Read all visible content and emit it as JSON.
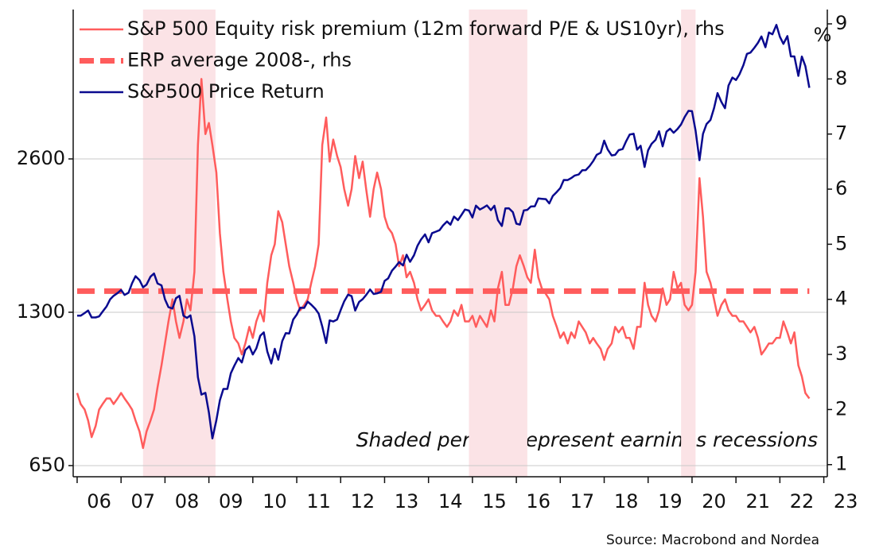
{
  "chart_data": {
    "type": "line",
    "annotation": "Shaded periods represent earnings recessions",
    "source": "Source: Macrobond and Nordea",
    "y2_unit": "%",
    "x": [
      2006.0,
      2006.08,
      2006.17,
      2006.25,
      2006.33,
      2006.42,
      2006.5,
      2006.58,
      2006.67,
      2006.75,
      2006.83,
      2006.92,
      2007.0,
      2007.08,
      2007.17,
      2007.25,
      2007.33,
      2007.42,
      2007.5,
      2007.58,
      2007.67,
      2007.75,
      2007.83,
      2007.92,
      2008.0,
      2008.08,
      2008.17,
      2008.25,
      2008.33,
      2008.42,
      2008.5,
      2008.58,
      2008.67,
      2008.75,
      2008.83,
      2008.92,
      2009.0,
      2009.08,
      2009.17,
      2009.25,
      2009.33,
      2009.42,
      2009.5,
      2009.58,
      2009.67,
      2009.75,
      2009.83,
      2009.92,
      2010.0,
      2010.08,
      2010.17,
      2010.25,
      2010.33,
      2010.42,
      2010.5,
      2010.58,
      2010.67,
      2010.75,
      2010.83,
      2010.92,
      2011.0,
      2011.08,
      2011.17,
      2011.25,
      2011.33,
      2011.42,
      2011.5,
      2011.58,
      2011.67,
      2011.75,
      2011.83,
      2011.92,
      2012.0,
      2012.08,
      2012.17,
      2012.25,
      2012.33,
      2012.42,
      2012.5,
      2012.58,
      2012.67,
      2012.75,
      2012.83,
      2012.92,
      2013.0,
      2013.08,
      2013.17,
      2013.25,
      2013.33,
      2013.42,
      2013.5,
      2013.58,
      2013.67,
      2013.75,
      2013.83,
      2013.92,
      2014.0,
      2014.08,
      2014.17,
      2014.25,
      2014.33,
      2014.42,
      2014.5,
      2014.58,
      2014.67,
      2014.75,
      2014.83,
      2014.92,
      2015.0,
      2015.08,
      2015.17,
      2015.25,
      2015.33,
      2015.42,
      2015.5,
      2015.58,
      2015.67,
      2015.75,
      2015.83,
      2015.92,
      2016.0,
      2016.08,
      2016.17,
      2016.25,
      2016.33,
      2016.42,
      2016.5,
      2016.58,
      2016.67,
      2016.75,
      2016.83,
      2016.92,
      2017.0,
      2017.08,
      2017.17,
      2017.25,
      2017.33,
      2017.42,
      2017.5,
      2017.58,
      2017.67,
      2017.75,
      2017.83,
      2017.92,
      2018.0,
      2018.08,
      2018.17,
      2018.25,
      2018.33,
      2018.42,
      2018.5,
      2018.58,
      2018.67,
      2018.75,
      2018.83,
      2018.92,
      2019.0,
      2019.08,
      2019.17,
      2019.25,
      2019.33,
      2019.42,
      2019.5,
      2019.58,
      2019.67,
      2019.75,
      2019.83,
      2019.92,
      2020.0,
      2020.08,
      2020.17,
      2020.25,
      2020.33,
      2020.42,
      2020.5,
      2020.58,
      2020.67,
      2020.75,
      2020.83,
      2020.92,
      2021.0,
      2021.08,
      2021.17,
      2021.25,
      2021.33,
      2021.42,
      2021.5,
      2021.58,
      2021.67,
      2021.75,
      2021.83,
      2021.92,
      2022.0,
      2022.08,
      2022.17,
      2022.25,
      2022.33,
      2022.42,
      2022.5,
      2022.58,
      2022.67
    ],
    "series": [
      {
        "name": "S&P 500 Equity risk premium (12m forward P/E & US10yr), rhs",
        "color": "#ff5c5c",
        "axis": "y2",
        "values": [
          2.3,
          2.1,
          2.0,
          1.8,
          1.5,
          1.7,
          2.0,
          2.1,
          2.2,
          2.2,
          2.1,
          2.2,
          2.3,
          2.2,
          2.1,
          2.0,
          1.8,
          1.6,
          1.3,
          1.6,
          1.8,
          2.0,
          2.4,
          2.8,
          3.2,
          3.6,
          4.0,
          3.6,
          3.3,
          3.6,
          4.0,
          3.8,
          4.5,
          6.8,
          8.0,
          7.0,
          7.2,
          6.8,
          6.3,
          5.2,
          4.5,
          4.0,
          3.6,
          3.3,
          3.2,
          3.0,
          3.2,
          3.5,
          3.3,
          3.6,
          3.8,
          3.6,
          4.3,
          4.8,
          5.0,
          5.6,
          5.4,
          5.0,
          4.6,
          4.3,
          4.0,
          3.8,
          3.9,
          4.0,
          4.3,
          4.6,
          5.0,
          6.8,
          7.3,
          6.5,
          6.9,
          6.6,
          6.4,
          6.0,
          5.7,
          6.0,
          6.6,
          6.2,
          6.5,
          6.0,
          5.5,
          6.0,
          6.3,
          6.0,
          5.5,
          5.3,
          5.2,
          5.0,
          4.6,
          4.8,
          4.4,
          4.5,
          4.3,
          4.0,
          3.8,
          3.9,
          4.0,
          3.8,
          3.7,
          3.7,
          3.6,
          3.5,
          3.6,
          3.8,
          3.7,
          3.9,
          3.6,
          3.6,
          3.7,
          3.5,
          3.7,
          3.6,
          3.5,
          3.8,
          3.6,
          4.2,
          4.5,
          3.9,
          3.9,
          4.2,
          4.6,
          4.8,
          4.6,
          4.4,
          4.3,
          4.9,
          4.4,
          4.2,
          4.1,
          4.0,
          3.7,
          3.5,
          3.3,
          3.4,
          3.2,
          3.4,
          3.3,
          3.6,
          3.5,
          3.4,
          3.2,
          3.3,
          3.2,
          3.1,
          2.9,
          3.1,
          3.2,
          3.5,
          3.4,
          3.5,
          3.3,
          3.3,
          3.1,
          3.5,
          3.5,
          4.3,
          3.9,
          3.7,
          3.6,
          3.8,
          4.2,
          3.9,
          4.0,
          4.5,
          4.2,
          4.3,
          3.9,
          3.8,
          3.9,
          4.5,
          6.2,
          5.5,
          4.5,
          4.3,
          4.0,
          3.7,
          3.9,
          4.0,
          3.8,
          3.7,
          3.7,
          3.6,
          3.6,
          3.5,
          3.4,
          3.5,
          3.3,
          3.0,
          3.1,
          3.2,
          3.2,
          3.3,
          3.3,
          3.6,
          3.4,
          3.2,
          3.4,
          2.8,
          2.6,
          2.3,
          2.2
        ]
      },
      {
        "name": "S&P500 Price Return",
        "color": "#0a0a8f",
        "axis": "y",
        "values": [
          1280,
          1280,
          1295,
          1310,
          1270,
          1270,
          1276,
          1304,
          1335,
          1378,
          1400,
          1418,
          1438,
          1406,
          1420,
          1482,
          1530,
          1503,
          1455,
          1473,
          1527,
          1549,
          1481,
          1468,
          1378,
          1330,
          1322,
          1385,
          1400,
          1280,
          1267,
          1282,
          1166,
          969,
          896,
          903,
          826,
          735,
          798,
          873,
          919,
          919,
          987,
          1021,
          1057,
          1036,
          1096,
          1115,
          1074,
          1104,
          1169,
          1187,
          1089,
          1031,
          1102,
          1049,
          1141,
          1183,
          1181,
          1258,
          1286,
          1327,
          1326,
          1364,
          1345,
          1321,
          1292,
          1219,
          1131,
          1253,
          1247,
          1258,
          1312,
          1366,
          1408,
          1398,
          1310,
          1362,
          1379,
          1406,
          1441,
          1412,
          1416,
          1426,
          1498,
          1515,
          1569,
          1598,
          1631,
          1606,
          1686,
          1633,
          1682,
          1757,
          1806,
          1848,
          1783,
          1859,
          1872,
          1884,
          1924,
          1960,
          1931,
          2003,
          1972,
          2018,
          2068,
          2059,
          1995,
          2105,
          2068,
          2086,
          2107,
          2063,
          2104,
          1972,
          1920,
          2079,
          2080,
          2044,
          1940,
          1932,
          2060,
          2065,
          2097,
          2099,
          2174,
          2171,
          2168,
          2126,
          2199,
          2239,
          2279,
          2364,
          2363,
          2384,
          2412,
          2423,
          2470,
          2472,
          2519,
          2575,
          2648,
          2674,
          2824,
          2714,
          2641,
          2648,
          2705,
          2718,
          2816,
          2902,
          2914,
          2712,
          2760,
          2507,
          2704,
          2784,
          2834,
          2946,
          2752,
          2942,
          2980,
          2926,
          2977,
          3038,
          3141,
          3231,
          3226,
          2954,
          2585,
          2912,
          3044,
          3100,
          3271,
          3500,
          3363,
          3270,
          3622,
          3756,
          3714,
          3811,
          3973,
          4181,
          4204,
          4298,
          4395,
          4523,
          4308,
          4605,
          4567,
          4766,
          4516,
          4374,
          4530,
          4132,
          4132,
          3785,
          4130,
          3955,
          3586
        ]
      }
    ],
    "reference_lines": [
      {
        "name": "ERP average 2008-, rhs",
        "value": 4.15,
        "axis": "y2",
        "color": "#ff5c5c",
        "style": "dashed",
        "x": [
          2006.0,
          2022.67
        ]
      }
    ],
    "shaded_periods": [
      [
        2007.5,
        2009.15
      ],
      [
        2014.92,
        2016.25
      ],
      [
        2019.75,
        2020.08
      ]
    ],
    "shade_color": "#fbe3e6",
    "xlim": [
      2005.91,
      2023.08
    ],
    "xticks": [
      {
        "value": 2006,
        "label": "06"
      },
      {
        "value": 2007,
        "label": "07"
      },
      {
        "value": 2008,
        "label": "08"
      },
      {
        "value": 2009,
        "label": "09"
      },
      {
        "value": 2010,
        "label": "10"
      },
      {
        "value": 2011,
        "label": "11"
      },
      {
        "value": 2012,
        "label": "12"
      },
      {
        "value": 2013,
        "label": "13"
      },
      {
        "value": 2014,
        "label": "14"
      },
      {
        "value": 2015,
        "label": "15"
      },
      {
        "value": 2016,
        "label": "16"
      },
      {
        "value": 2017,
        "label": "17"
      },
      {
        "value": 2018,
        "label": "18"
      },
      {
        "value": 2019,
        "label": "19"
      },
      {
        "value": 2020,
        "label": "20"
      },
      {
        "value": 2021,
        "label": "21"
      },
      {
        "value": 2022,
        "label": "22"
      },
      {
        "value": 2023,
        "label": "23"
      }
    ],
    "ylim": [
      618,
      5108
    ],
    "ylog": true,
    "yticks": [
      650,
      1300,
      2600
    ],
    "y2lim": [
      0.78,
      9.26
    ],
    "y2ticks": [
      1,
      2,
      3,
      4,
      5,
      6,
      7,
      8,
      9
    ],
    "grid": true,
    "legend": "upper left"
  }
}
